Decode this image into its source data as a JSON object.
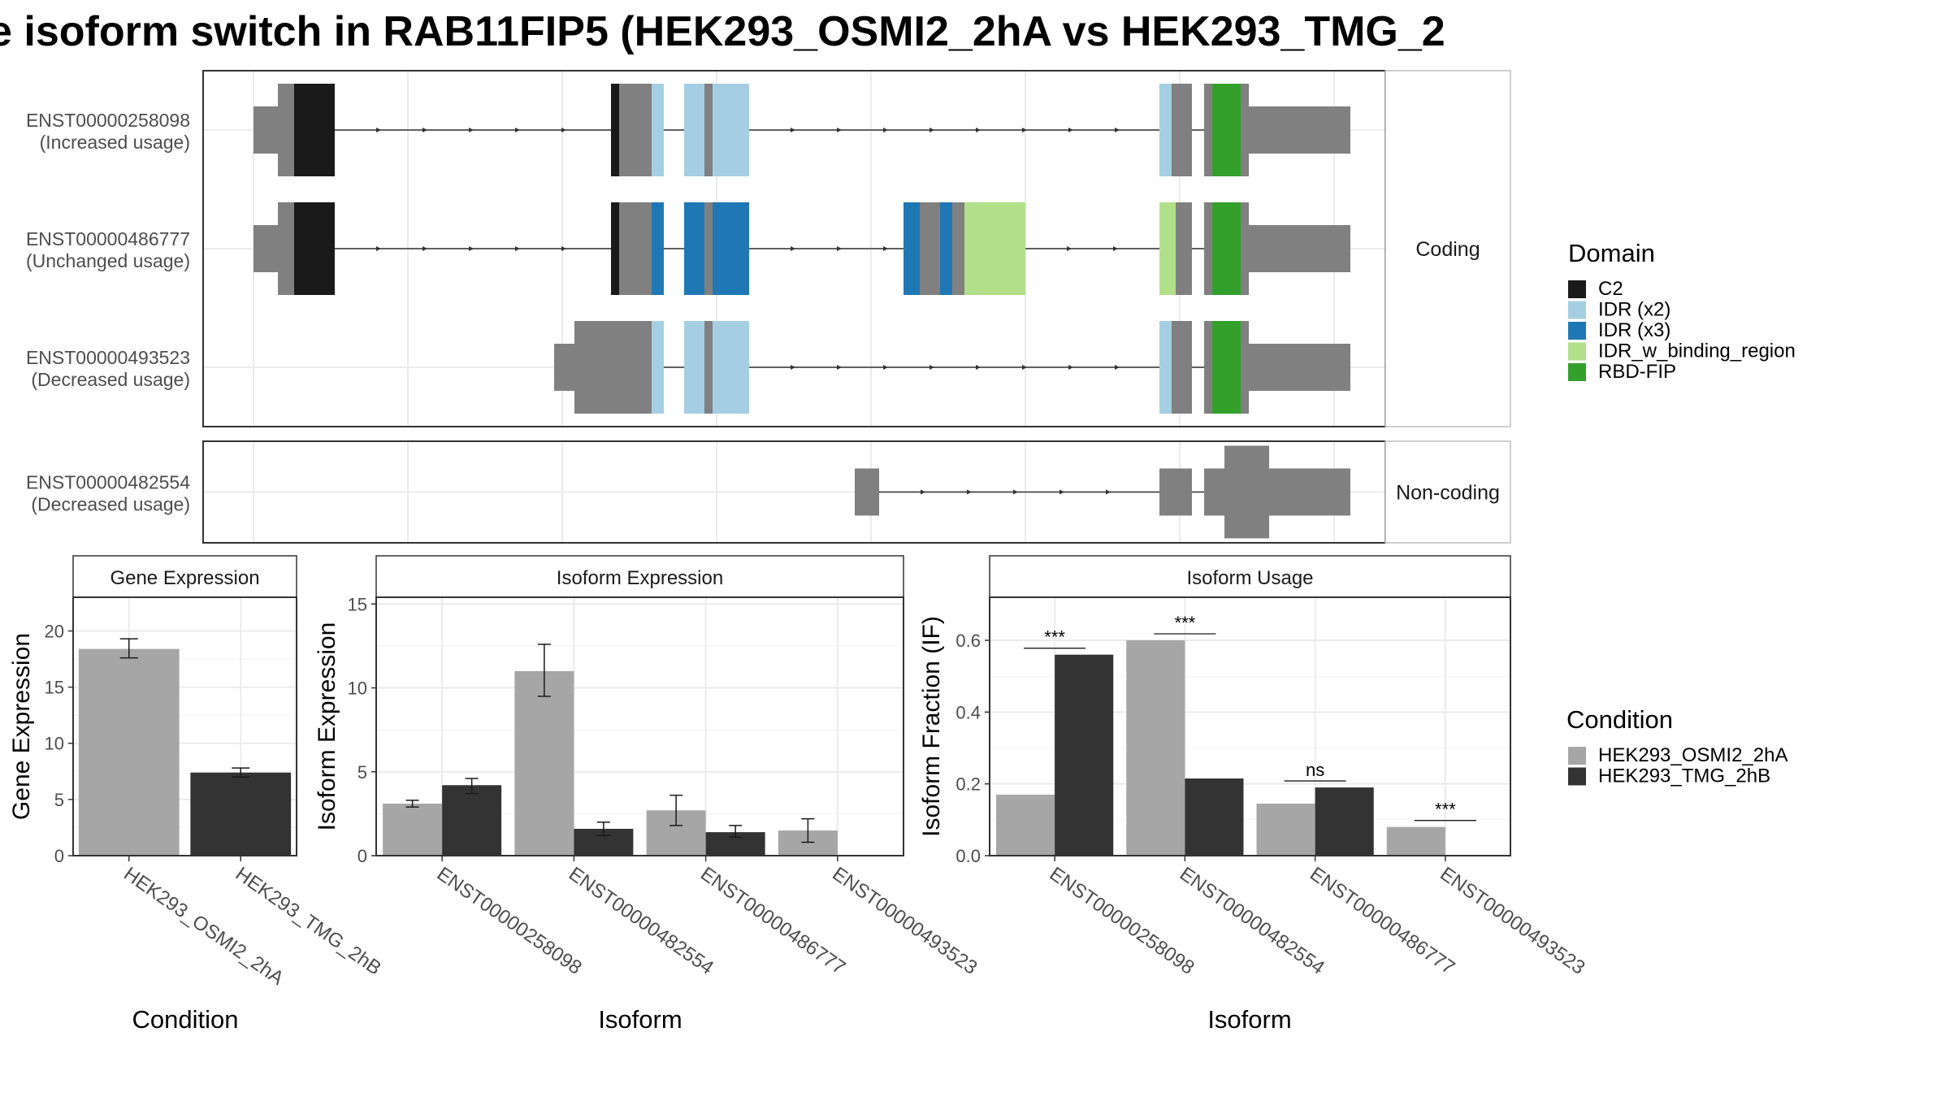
{
  "title": "e isoform switch in RAB11FIP5 (HEK293_OSMI2_2hA vs HEK293_TMG_2",
  "colors": {
    "C2": "#1a1a1a",
    "IDR (x2)": "#a6cee3",
    "IDR (x3)": "#1f78b4",
    "IDR_w_binding_region": "#b2df8a",
    "RBD-FIP": "#33a02c",
    "exon": "#808080",
    "HEK293_OSMI2_2hA": "#a6a6a6",
    "HEK293_TMG_2hB": "#333333"
  },
  "structure": {
    "facets": [
      {
        "label": "Coding",
        "transcripts": [
          {
            "id": "ENST00000258098",
            "usage": "(Increased usage)",
            "segments": [
              [
                0,
                6,
                "utr"
              ],
              [
                6,
                10,
                "cds"
              ],
              [
                10,
                20,
                "C2"
              ],
              [
                88,
                90,
                "C2"
              ],
              [
                90,
                98,
                "cds"
              ],
              [
                98,
                101,
                "IDR (x2)"
              ],
              [
                106,
                111,
                "IDR (x2)"
              ],
              [
                111,
                113,
                "cds"
              ],
              [
                113,
                122,
                "IDR (x2)"
              ],
              [
                223,
                226,
                "IDR (x2)"
              ],
              [
                226,
                231,
                "cds"
              ],
              [
                234,
                236,
                "cds"
              ],
              [
                236,
                243,
                "RBD-FIP"
              ],
              [
                243,
                245,
                "cds"
              ],
              [
                245,
                270,
                "utr"
              ]
            ]
          },
          {
            "id": "ENST00000486777",
            "usage": "(Unchanged usage)",
            "segments": [
              [
                0,
                6,
                "utr"
              ],
              [
                6,
                10,
                "cds"
              ],
              [
                10,
                20,
                "C2"
              ],
              [
                88,
                90,
                "C2"
              ],
              [
                90,
                98,
                "cds"
              ],
              [
                98,
                101,
                "IDR (x3)"
              ],
              [
                106,
                111,
                "IDR (x3)"
              ],
              [
                111,
                113,
                "cds"
              ],
              [
                113,
                122,
                "IDR (x3)"
              ],
              [
                160,
                164,
                "IDR (x3)"
              ],
              [
                164,
                169,
                "cds"
              ],
              [
                169,
                172,
                "IDR (x3)"
              ],
              [
                172,
                175,
                "cds"
              ],
              [
                175,
                190,
                "IDR_w_binding_region"
              ],
              [
                223,
                227,
                "IDR_w_binding_region"
              ],
              [
                227,
                231,
                "cds"
              ],
              [
                234,
                236,
                "cds"
              ],
              [
                236,
                243,
                "RBD-FIP"
              ],
              [
                243,
                245,
                "cds"
              ],
              [
                245,
                270,
                "utr"
              ]
            ]
          },
          {
            "id": "ENST00000493523",
            "usage": "(Decreased usage)",
            "segments": [
              [
                74,
                79,
                "utr"
              ],
              [
                79,
                98,
                "cds"
              ],
              [
                98,
                101,
                "IDR (x2)"
              ],
              [
                106,
                111,
                "IDR (x2)"
              ],
              [
                111,
                113,
                "cds"
              ],
              [
                113,
                122,
                "IDR (x2)"
              ],
              [
                223,
                226,
                "IDR (x2)"
              ],
              [
                226,
                231,
                "cds"
              ],
              [
                234,
                236,
                "cds"
              ],
              [
                236,
                243,
                "RBD-FIP"
              ],
              [
                243,
                245,
                "cds"
              ],
              [
                245,
                270,
                "utr"
              ]
            ]
          }
        ]
      },
      {
        "label": "Non-coding",
        "transcripts": [
          {
            "id": "ENST00000482554",
            "usage": "(Decreased usage)",
            "segments": [
              [
                148,
                154,
                "utr"
              ],
              [
                223,
                231,
                "utr"
              ],
              [
                234,
                239,
                "utr"
              ],
              [
                239,
                250,
                "cds"
              ],
              [
                250,
                270,
                "utr"
              ]
            ]
          }
        ]
      }
    ]
  },
  "legends": {
    "domain_title": "Domain",
    "domain_items": [
      "C2",
      "IDR (x2)",
      "IDR (x3)",
      "IDR_w_binding_region",
      "RBD-FIP"
    ],
    "condition_title": "Condition",
    "condition_items": [
      "HEK293_OSMI2_2hA",
      "HEK293_TMG_2hB"
    ]
  },
  "chart_data": [
    {
      "type": "bar",
      "title": "Gene Expression",
      "xlabel": "Condition",
      "ylabel": "Gene Expression",
      "categories": [
        "HEK293_OSMI2_2hA",
        "HEK293_TMG_2hB"
      ],
      "values": [
        18.4,
        7.4
      ],
      "error": [
        [
          17.6,
          19.3
        ],
        [
          7.0,
          7.8
        ]
      ],
      "ylim": [
        0,
        23
      ],
      "yticks": [
        0,
        5,
        10,
        15,
        20
      ]
    },
    {
      "type": "bar",
      "title": "Isoform Expression",
      "xlabel": "Isoform",
      "ylabel": "Isoform Expression",
      "categories": [
        "ENST00000258098",
        "ENST00000482554",
        "ENST00000486777",
        "ENST00000493523"
      ],
      "series": [
        {
          "name": "HEK293_OSMI2_2hA",
          "values": [
            3.1,
            11.0,
            2.7,
            1.5
          ],
          "error": [
            [
              2.9,
              3.3
            ],
            [
              9.5,
              12.6
            ],
            [
              1.8,
              3.6
            ],
            [
              0.8,
              2.2
            ]
          ]
        },
        {
          "name": "HEK293_TMG_2hB",
          "values": [
            4.2,
            1.6,
            1.4,
            0.0
          ],
          "error": [
            [
              3.7,
              4.6
            ],
            [
              1.2,
              2.0
            ],
            [
              1.1,
              1.8
            ],
            [
              0.0,
              0.0
            ]
          ]
        }
      ],
      "ylim": [
        0,
        15.4
      ],
      "yticks": [
        0,
        5,
        10,
        15
      ]
    },
    {
      "type": "bar",
      "title": "Isoform Usage",
      "xlabel": "Isoform",
      "ylabel": "Isoform Fraction (IF)",
      "categories": [
        "ENST00000258098",
        "ENST00000482554",
        "ENST00000486777",
        "ENST00000493523"
      ],
      "series": [
        {
          "name": "HEK293_OSMI2_2hA",
          "values": [
            0.17,
            0.6,
            0.145,
            0.08
          ]
        },
        {
          "name": "HEK293_TMG_2hB",
          "values": [
            0.56,
            0.215,
            0.19,
            0.0
          ]
        }
      ],
      "annotations": [
        "***",
        "***",
        "ns",
        "***"
      ],
      "ylim": [
        0,
        0.72
      ],
      "yticks": [
        0.0,
        0.2,
        0.4,
        0.6
      ]
    }
  ]
}
